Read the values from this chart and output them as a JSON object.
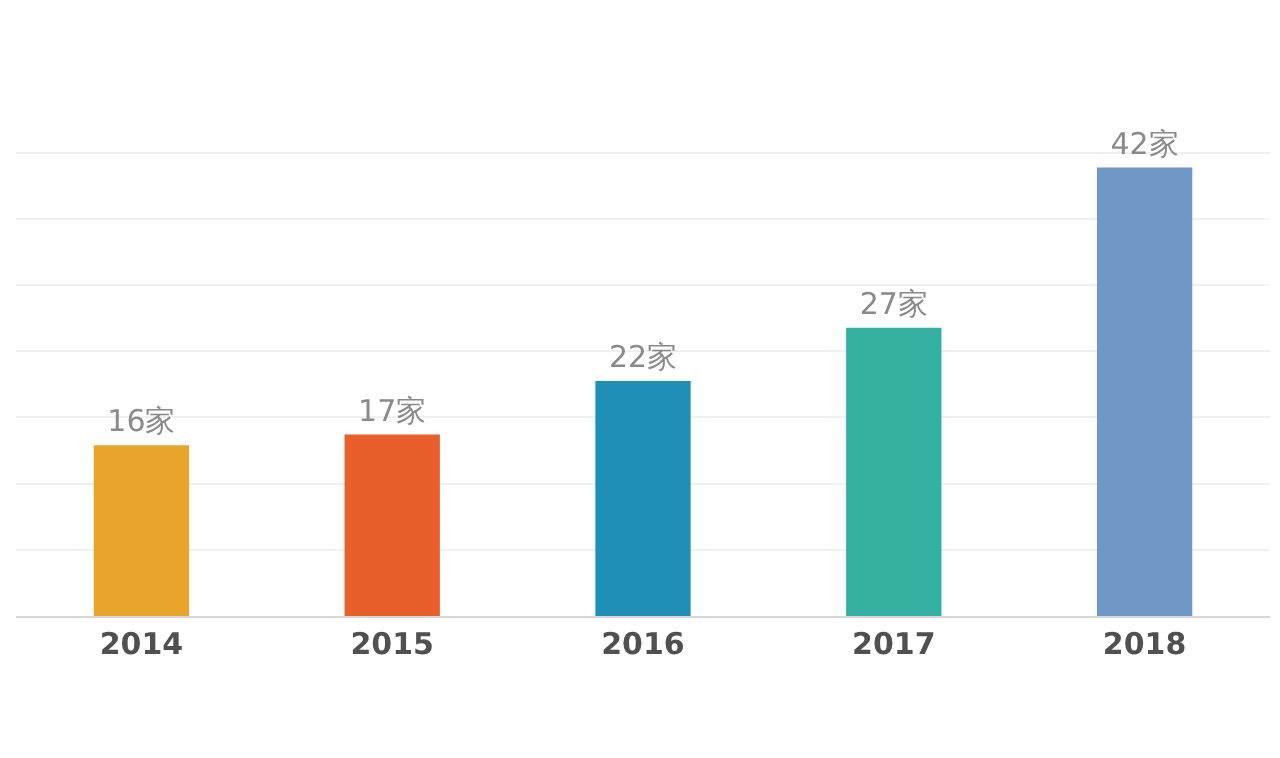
{
  "chart_data": {
    "type": "bar",
    "categories": [
      "2014",
      "2015",
      "2016",
      "2017",
      "2018"
    ],
    "values": [
      16,
      17,
      22,
      27,
      42
    ],
    "colors": [
      "#e9a52b",
      "#e95f2b",
      "#1f8fb5",
      "#33b0a0",
      "#6e97c5"
    ],
    "value_labels": [
      "16家",
      "17家",
      "22家",
      "27家",
      "42家"
    ],
    "yticks": [
      {
        "value": 6.2,
        "label": null
      },
      {
        "value": 12.4,
        "label": null
      },
      {
        "value": 18.6,
        "label": null
      },
      {
        "value": 24.8,
        "label": null
      },
      {
        "value": 31,
        "label": null
      },
      {
        "value": 37.2,
        "label": null
      },
      {
        "value": 43.4,
        "label": null
      }
    ],
    "grid": "y",
    "tick_labels": "x"
  }
}
